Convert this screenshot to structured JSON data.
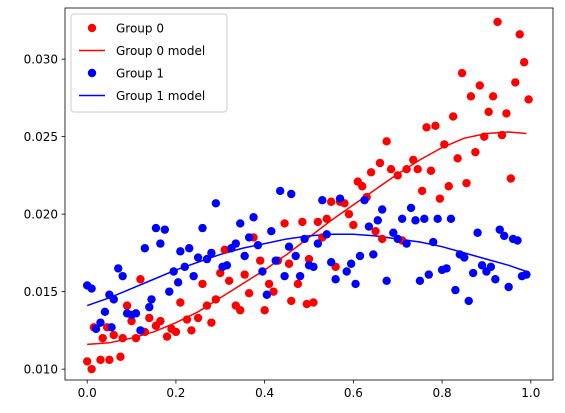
{
  "chart_data": {
    "type": "scatter",
    "title": "",
    "xlabel": "",
    "ylabel": "",
    "xlim": [
      -0.05,
      1.05
    ],
    "ylim": [
      0.0093,
      0.0333
    ],
    "x_ticks": [
      0.0,
      0.2,
      0.4,
      0.6,
      0.8,
      1.0
    ],
    "x_tick_labels": [
      "0.0",
      "0.2",
      "0.4",
      "0.6",
      "0.8",
      "1.0"
    ],
    "y_ticks": [
      0.01,
      0.015,
      0.02,
      0.025,
      0.03
    ],
    "y_tick_labels": [
      "0.010",
      "0.015",
      "0.020",
      "0.025",
      "0.030"
    ],
    "grid": false,
    "legend_position": "top-left",
    "legend": [
      {
        "label": "Group 0",
        "kind": "marker",
        "color": "#ff0000"
      },
      {
        "label": "Group 0 model",
        "kind": "line",
        "color": "#ff0000"
      },
      {
        "label": "Group 1",
        "kind": "marker",
        "color": "#0000ff"
      },
      {
        "label": "Group 1 model",
        "kind": "line",
        "color": "#0000ff"
      }
    ],
    "series": [
      {
        "name": "Group 0",
        "kind": "scatter",
        "color": "#ff0000",
        "points": [
          [
            0.0,
            0.0105
          ],
          [
            0.01,
            0.01
          ],
          [
            0.015,
            0.0127
          ],
          [
            0.03,
            0.0106
          ],
          [
            0.035,
            0.012
          ],
          [
            0.045,
            0.0127
          ],
          [
            0.05,
            0.0106
          ],
          [
            0.06,
            0.0122
          ],
          [
            0.075,
            0.0108
          ],
          [
            0.08,
            0.012
          ],
          [
            0.09,
            0.0141
          ],
          [
            0.1,
            0.0131
          ],
          [
            0.11,
            0.012
          ],
          [
            0.12,
            0.0158
          ],
          [
            0.13,
            0.0124
          ],
          [
            0.14,
            0.0133
          ],
          [
            0.155,
            0.0128
          ],
          [
            0.165,
            0.0131
          ],
          [
            0.18,
            0.0121
          ],
          [
            0.19,
            0.0126
          ],
          [
            0.2,
            0.0124
          ],
          [
            0.21,
            0.0143
          ],
          [
            0.225,
            0.0132
          ],
          [
            0.235,
            0.0125
          ],
          [
            0.25,
            0.0133
          ],
          [
            0.26,
            0.0155
          ],
          [
            0.27,
            0.0141
          ],
          [
            0.28,
            0.013
          ],
          [
            0.29,
            0.0145
          ],
          [
            0.3,
            0.0162
          ],
          [
            0.31,
            0.0177
          ],
          [
            0.32,
            0.0157
          ],
          [
            0.335,
            0.0141
          ],
          [
            0.345,
            0.0138
          ],
          [
            0.355,
            0.0161
          ],
          [
            0.365,
            0.0149
          ],
          [
            0.375,
            0.0185
          ],
          [
            0.39,
            0.017
          ],
          [
            0.4,
            0.0138
          ],
          [
            0.41,
            0.0155
          ],
          [
            0.42,
            0.015
          ],
          [
            0.43,
            0.017
          ],
          [
            0.445,
            0.0194
          ],
          [
            0.455,
            0.0168
          ],
          [
            0.46,
            0.0144
          ],
          [
            0.475,
            0.0155
          ],
          [
            0.485,
            0.0195
          ],
          [
            0.495,
            0.0142
          ],
          [
            0.5,
            0.0171
          ],
          [
            0.51,
            0.0143
          ],
          [
            0.52,
            0.0195
          ],
          [
            0.53,
            0.0185
          ],
          [
            0.54,
            0.0197
          ],
          [
            0.55,
            0.0208
          ],
          [
            0.56,
            0.0166
          ],
          [
            0.57,
            0.0208
          ],
          [
            0.58,
            0.0207
          ],
          [
            0.59,
            0.02
          ],
          [
            0.6,
            0.0193
          ],
          [
            0.61,
            0.0221
          ],
          [
            0.62,
            0.0218
          ],
          [
            0.63,
            0.0211
          ],
          [
            0.64,
            0.0227
          ],
          [
            0.65,
            0.0189
          ],
          [
            0.66,
            0.0233
          ],
          [
            0.665,
            0.0184
          ],
          [
            0.675,
            0.0247
          ],
          [
            0.685,
            0.0229
          ],
          [
            0.7,
            0.0225
          ],
          [
            0.71,
            0.0183
          ],
          [
            0.72,
            0.0229
          ],
          [
            0.735,
            0.0235
          ],
          [
            0.745,
            0.0229
          ],
          [
            0.755,
            0.0215
          ],
          [
            0.765,
            0.0256
          ],
          [
            0.775,
            0.0228
          ],
          [
            0.785,
            0.0257
          ],
          [
            0.795,
            0.021
          ],
          [
            0.805,
            0.0245
          ],
          [
            0.815,
            0.0218
          ],
          [
            0.825,
            0.0263
          ],
          [
            0.835,
            0.0236
          ],
          [
            0.845,
            0.0291
          ],
          [
            0.855,
            0.022
          ],
          [
            0.865,
            0.0276
          ],
          [
            0.875,
            0.024
          ],
          [
            0.885,
            0.0283
          ],
          [
            0.895,
            0.025
          ],
          [
            0.905,
            0.0266
          ],
          [
            0.915,
            0.0276
          ],
          [
            0.925,
            0.0324
          ],
          [
            0.935,
            0.0251
          ],
          [
            0.945,
            0.0265
          ],
          [
            0.955,
            0.0223
          ],
          [
            0.965,
            0.0285
          ],
          [
            0.975,
            0.0316
          ],
          [
            0.985,
            0.0298
          ],
          [
            0.995,
            0.0274
          ]
        ]
      },
      {
        "name": "Group 0 model",
        "kind": "line",
        "color": "#ff0000",
        "points": [
          [
            0.0,
            0.0116
          ],
          [
            0.05,
            0.0117
          ],
          [
            0.1,
            0.012
          ],
          [
            0.15,
            0.0124
          ],
          [
            0.2,
            0.013
          ],
          [
            0.25,
            0.0137
          ],
          [
            0.3,
            0.0146
          ],
          [
            0.35,
            0.0155
          ],
          [
            0.4,
            0.0164
          ],
          [
            0.45,
            0.0174
          ],
          [
            0.5,
            0.0185
          ],
          [
            0.55,
            0.0196
          ],
          [
            0.6,
            0.0206
          ],
          [
            0.65,
            0.0216
          ],
          [
            0.7,
            0.0226
          ],
          [
            0.75,
            0.0235
          ],
          [
            0.8,
            0.0243
          ],
          [
            0.85,
            0.0249
          ],
          [
            0.9,
            0.0252
          ],
          [
            0.95,
            0.0253
          ],
          [
            0.99,
            0.0252
          ]
        ]
      },
      {
        "name": "Group 1",
        "kind": "scatter",
        "color": "#0000ff",
        "points": [
          [
            0.0,
            0.0154
          ],
          [
            0.01,
            0.0152
          ],
          [
            0.02,
            0.0126
          ],
          [
            0.03,
            0.013
          ],
          [
            0.04,
            0.0137
          ],
          [
            0.05,
            0.0148
          ],
          [
            0.055,
            0.0127
          ],
          [
            0.06,
            0.0145
          ],
          [
            0.07,
            0.0165
          ],
          [
            0.08,
            0.016
          ],
          [
            0.09,
            0.0136
          ],
          [
            0.1,
            0.0135
          ],
          [
            0.11,
            0.0136
          ],
          [
            0.12,
            0.0125
          ],
          [
            0.13,
            0.0178
          ],
          [
            0.14,
            0.014
          ],
          [
            0.145,
            0.0145
          ],
          [
            0.155,
            0.0191
          ],
          [
            0.165,
            0.0181
          ],
          [
            0.175,
            0.019
          ],
          [
            0.185,
            0.015
          ],
          [
            0.195,
            0.0163
          ],
          [
            0.205,
            0.0156
          ],
          [
            0.21,
            0.0176
          ],
          [
            0.22,
            0.0166
          ],
          [
            0.23,
            0.0178
          ],
          [
            0.24,
            0.016
          ],
          [
            0.25,
            0.0172
          ],
          [
            0.26,
            0.0191
          ],
          [
            0.27,
            0.0171
          ],
          [
            0.28,
            0.0175
          ],
          [
            0.29,
            0.0207
          ],
          [
            0.305,
            0.0166
          ],
          [
            0.315,
            0.0167
          ],
          [
            0.325,
            0.0178
          ],
          [
            0.335,
            0.0181
          ],
          [
            0.345,
            0.0194
          ],
          [
            0.355,
            0.0173
          ],
          [
            0.365,
            0.0185
          ],
          [
            0.375,
            0.0198
          ],
          [
            0.385,
            0.018
          ],
          [
            0.395,
            0.0163
          ],
          [
            0.405,
            0.0148
          ],
          [
            0.415,
            0.0189
          ],
          [
            0.425,
            0.017
          ],
          [
            0.435,
            0.0215
          ],
          [
            0.445,
            0.016
          ],
          [
            0.455,
            0.0179
          ],
          [
            0.46,
            0.0213
          ],
          [
            0.47,
            0.0173
          ],
          [
            0.48,
            0.016
          ],
          [
            0.49,
            0.0184
          ],
          [
            0.5,
            0.0167
          ],
          [
            0.51,
            0.0166
          ],
          [
            0.52,
            0.0181
          ],
          [
            0.53,
            0.0209
          ],
          [
            0.54,
            0.0187
          ],
          [
            0.55,
            0.0169
          ],
          [
            0.56,
            0.0158
          ],
          [
            0.57,
            0.021
          ],
          [
            0.585,
            0.0163
          ],
          [
            0.595,
            0.0168
          ],
          [
            0.605,
            0.0155
          ],
          [
            0.615,
            0.0173
          ],
          [
            0.625,
            0.0209
          ],
          [
            0.635,
            0.0192
          ],
          [
            0.645,
            0.0174
          ],
          [
            0.655,
            0.0196
          ],
          [
            0.665,
            0.0203
          ],
          [
            0.675,
            0.0157
          ],
          [
            0.69,
            0.0188
          ],
          [
            0.7,
            0.0184
          ],
          [
            0.71,
            0.0197
          ],
          [
            0.72,
            0.0181
          ],
          [
            0.73,
            0.0204
          ],
          [
            0.74,
            0.0196
          ],
          [
            0.75,
            0.0157
          ],
          [
            0.76,
            0.0197
          ],
          [
            0.77,
            0.0161
          ],
          [
            0.78,
            0.0182
          ],
          [
            0.79,
            0.0197
          ],
          [
            0.8,
            0.0164
          ],
          [
            0.81,
            0.0165
          ],
          [
            0.82,
            0.0197
          ],
          [
            0.83,
            0.0151
          ],
          [
            0.84,
            0.0174
          ],
          [
            0.85,
            0.0172
          ],
          [
            0.86,
            0.0144
          ],
          [
            0.87,
            0.0162
          ],
          [
            0.88,
            0.0188
          ],
          [
            0.89,
            0.0167
          ],
          [
            0.9,
            0.0163
          ],
          [
            0.91,
            0.0166
          ],
          [
            0.92,
            0.0158
          ],
          [
            0.93,
            0.019
          ],
          [
            0.94,
            0.0186
          ],
          [
            0.95,
            0.0153
          ],
          [
            0.96,
            0.0184
          ],
          [
            0.97,
            0.0183
          ],
          [
            0.98,
            0.016
          ],
          [
            0.99,
            0.0161
          ]
        ]
      },
      {
        "name": "Group 1 model",
        "kind": "line",
        "color": "#0000ff",
        "points": [
          [
            0.0,
            0.0141
          ],
          [
            0.05,
            0.0146
          ],
          [
            0.1,
            0.0152
          ],
          [
            0.15,
            0.0158
          ],
          [
            0.2,
            0.0164
          ],
          [
            0.25,
            0.0169
          ],
          [
            0.3,
            0.0174
          ],
          [
            0.35,
            0.0178
          ],
          [
            0.4,
            0.0181
          ],
          [
            0.45,
            0.0184
          ],
          [
            0.5,
            0.0186
          ],
          [
            0.55,
            0.0187
          ],
          [
            0.6,
            0.0187
          ],
          [
            0.65,
            0.0186
          ],
          [
            0.7,
            0.0184
          ],
          [
            0.75,
            0.0182
          ],
          [
            0.8,
            0.0179
          ],
          [
            0.85,
            0.0175
          ],
          [
            0.9,
            0.0171
          ],
          [
            0.95,
            0.0167
          ],
          [
            0.99,
            0.0163
          ]
        ]
      }
    ]
  }
}
